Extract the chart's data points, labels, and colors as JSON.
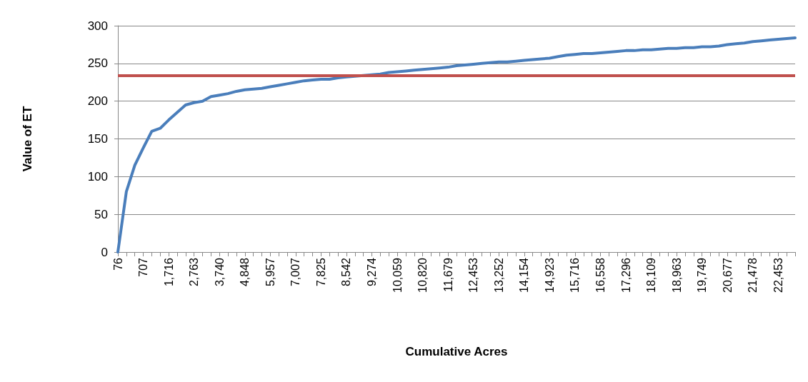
{
  "chart_data": {
    "type": "line",
    "xlabel": "Cumulative Acres",
    "ylabel": "Value of ET",
    "categories": [
      "76",
      null,
      null,
      "707",
      null,
      null,
      "1,716",
      null,
      null,
      "2,763",
      null,
      null,
      "3,740",
      null,
      null,
      "4,848",
      null,
      null,
      "5,957",
      null,
      null,
      "7,007",
      null,
      null,
      "7,825",
      null,
      null,
      "8,542",
      null,
      null,
      "9,274",
      null,
      null,
      "10,059",
      null,
      null,
      "10,820",
      null,
      null,
      "11,679",
      null,
      null,
      "12,453",
      null,
      null,
      "13,252",
      null,
      null,
      "14,154",
      null,
      null,
      "14,923",
      null,
      null,
      "15,716",
      null,
      null,
      "16,558",
      null,
      null,
      "17,296",
      null,
      null,
      "18,109",
      null,
      null,
      "18,963",
      null,
      null,
      "19,749",
      null,
      null,
      "20,677",
      null,
      null,
      "21,478",
      null,
      null,
      "22,453",
      null,
      null
    ],
    "series": [
      {
        "color": "#4a7ebb",
        "values": [
          0,
          80,
          115,
          138,
          160,
          164,
          175,
          185,
          195,
          198,
          200,
          206,
          208,
          210,
          213,
          215,
          216,
          217,
          219,
          221,
          223,
          225,
          227,
          228,
          229,
          229,
          231,
          232,
          233,
          234,
          235,
          236,
          238,
          239,
          240,
          241,
          242,
          243,
          244,
          245,
          247,
          248,
          249,
          250,
          251,
          252,
          252,
          253,
          254,
          255,
          256,
          257,
          259,
          261,
          262,
          263,
          263,
          264,
          265,
          266,
          267,
          267,
          268,
          268,
          269,
          270,
          270,
          271,
          271,
          272,
          272,
          273,
          275,
          276,
          277,
          279,
          280,
          281,
          282,
          283,
          284
        ]
      }
    ],
    "ylim": [
      0,
      300
    ],
    "yticks": [
      0,
      50,
      100,
      150,
      200,
      250,
      300
    ],
    "grid": "y",
    "marker": "none",
    "line_style": "solid",
    "ref_lines": [
      {
        "axis": "y",
        "value": 234,
        "color": "#c0504d"
      }
    ]
  }
}
